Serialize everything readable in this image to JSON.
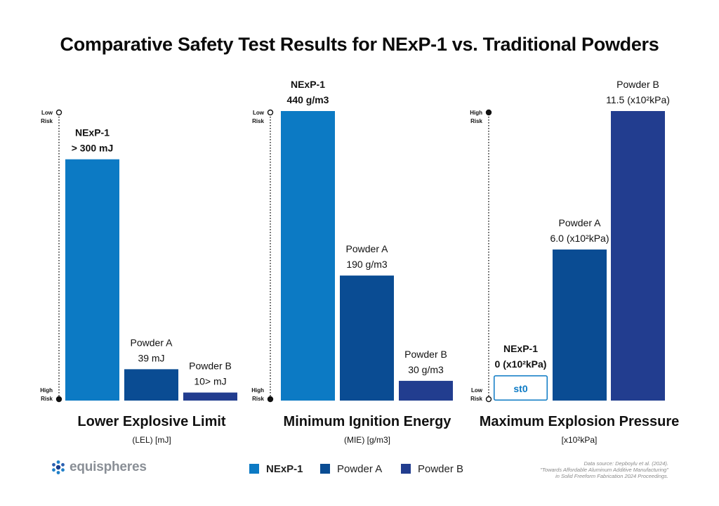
{
  "title": "Comparative Safety Test Results for NExP-1 vs. Traditional Powders",
  "colors": {
    "nexp1": "#0c7ac4",
    "powder_a": "#0a4c93",
    "powder_b": "#223d8f",
    "text": "#111111"
  },
  "chart_data": [
    {
      "type": "bar",
      "title": "Lower Explosive Limit",
      "subtitle": "(LEL) [mJ]",
      "axis_top_label": [
        "Low",
        "Risk"
      ],
      "axis_bottom_label": [
        "High",
        "Risk"
      ],
      "categories": [
        "NExP-1",
        "Powder A",
        "Powder B"
      ],
      "values": [
        300,
        39,
        10
      ],
      "value_labels": [
        [
          "NExP-1",
          "> 300 mJ"
        ],
        [
          "Powder A",
          "39 mJ"
        ],
        [
          "Powder B",
          "10> mJ"
        ]
      ],
      "ylim": [
        0,
        360
      ]
    },
    {
      "type": "bar",
      "title": "Minimum Ignition Energy",
      "subtitle": "(MIE) [g/m3]",
      "axis_top_label": [
        "Low",
        "Risk"
      ],
      "axis_bottom_label": [
        "High",
        "Risk"
      ],
      "categories": [
        "NExP-1",
        "Powder A",
        "Powder B"
      ],
      "values": [
        440,
        190,
        30
      ],
      "value_labels": [
        [
          "NExP-1",
          "440 g/m3"
        ],
        [
          "Powder A",
          "190 g/m3"
        ],
        [
          "Powder B",
          "30 g/m3"
        ]
      ],
      "ylim": [
        0,
        440
      ]
    },
    {
      "type": "bar",
      "title": "Maximum Explosion Pressure",
      "subtitle": "[x10²kPa]",
      "axis_top_label": [
        "High",
        "Risk"
      ],
      "axis_bottom_label": [
        "Low",
        "Risk"
      ],
      "categories": [
        "NExP-1",
        "Powder A",
        "Powder B"
      ],
      "values": [
        0,
        6.0,
        11.5
      ],
      "value_labels": [
        [
          "NExP-1",
          "0 (x10²kPa)"
        ],
        [
          "Powder A",
          "6.0 (x10²kPa)"
        ],
        [
          "Powder B",
          "11.5 (x10²kPa)"
        ]
      ],
      "bar_text": [
        "st0",
        "",
        ""
      ],
      "ylim": [
        0,
        11.5
      ]
    }
  ],
  "legend": [
    {
      "label": "NExP-1",
      "color": "#0c7ac4"
    },
    {
      "label": "Powder A",
      "color": "#0a4c93"
    },
    {
      "label": "Powder B",
      "color": "#223d8f"
    }
  ],
  "logo": {
    "text": "equispheres",
    "icon": "molecule-dots-icon"
  },
  "source": [
    "Data source: Depboylu et al. (2024).",
    "\"Towards Affordable Aluminum Additive Manufacturing\"",
    "in Solid Freeform Fabrication 2024 Proceedings."
  ]
}
